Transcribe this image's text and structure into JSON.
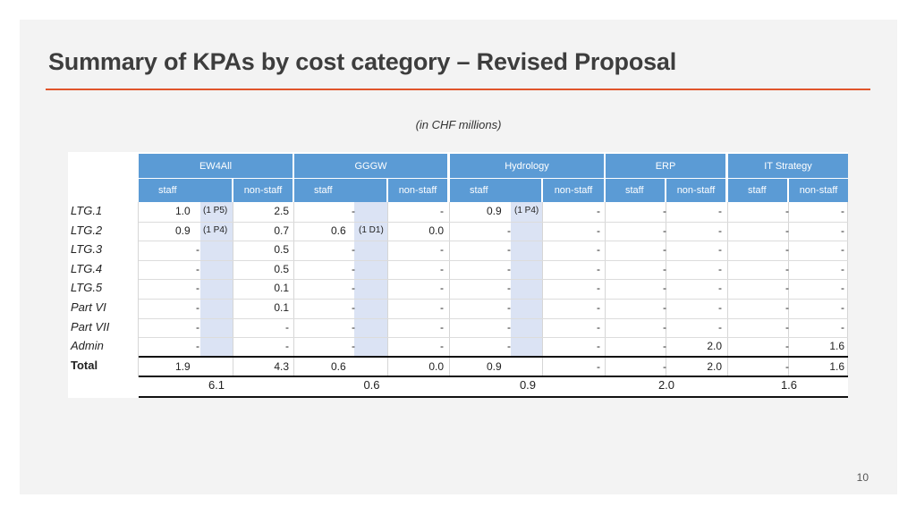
{
  "title": "Summary of KPAs by cost category – Revised Proposal",
  "subtitle": "(in CHF millions)",
  "page_number": "10",
  "table": {
    "groups": [
      {
        "name": "EW4All",
        "staff_label": "staff",
        "nonstaff_label": "non-staff",
        "total": "6.1"
      },
      {
        "name": "GGGW",
        "staff_label": "staff",
        "nonstaff_label": "non-staff",
        "total": "0.6"
      },
      {
        "name": "Hydrology",
        "staff_label": "staff",
        "nonstaff_label": "non-staff",
        "total": "0.9"
      },
      {
        "name": "ERP",
        "staff_label": "staff",
        "nonstaff_label": "non-staff",
        "total": "2.0"
      },
      {
        "name": "IT Strategy",
        "staff_label": "staff",
        "nonstaff_label": "non-staff",
        "total": "1.6"
      }
    ],
    "rows": [
      {
        "label": "LTG.1",
        "cells": [
          "1.0",
          "2.5",
          "-",
          "-",
          "0.9",
          "-",
          "-",
          "-",
          "-",
          "-"
        ],
        "notes": [
          "(1 P5)",
          "",
          "",
          "",
          "(1 P4)",
          "",
          "",
          "",
          "",
          ""
        ]
      },
      {
        "label": "LTG.2",
        "cells": [
          "0.9",
          "0.7",
          "0.6",
          "0.0",
          "-",
          "-",
          "-",
          "-",
          "-",
          "-"
        ],
        "notes": [
          "(1 P4)",
          "",
          "(1 D1)",
          "",
          "",
          "",
          "",
          "",
          "",
          ""
        ]
      },
      {
        "label": "LTG.3",
        "cells": [
          "-",
          "0.5",
          "-",
          "-",
          "-",
          "-",
          "-",
          "-",
          "-",
          "-"
        ]
      },
      {
        "label": "LTG.4",
        "cells": [
          "-",
          "0.5",
          "-",
          "-",
          "-",
          "-",
          "-",
          "-",
          "-",
          "-"
        ]
      },
      {
        "label": "LTG.5",
        "cells": [
          "-",
          "0.1",
          "-",
          "-",
          "-",
          "-",
          "-",
          "-",
          "-",
          "-"
        ]
      },
      {
        "label": "Part VI",
        "cells": [
          "-",
          "0.1",
          "-",
          "-",
          "-",
          "-",
          "-",
          "-",
          "-",
          "-"
        ]
      },
      {
        "label": "Part VII",
        "cells": [
          "-",
          "-",
          "-",
          "-",
          "-",
          "-",
          "-",
          "-",
          "-",
          "-"
        ]
      },
      {
        "label": "Admin",
        "cells": [
          "-",
          "-",
          "-",
          "-",
          "-",
          "-",
          "-",
          "2.0",
          "-",
          "1.6"
        ]
      }
    ],
    "total_row": {
      "label": "Total",
      "cells": [
        "1.9",
        "4.3",
        "0.6",
        "0.0",
        "0.9",
        "-",
        "-",
        "2.0",
        "-",
        "1.6"
      ]
    }
  }
}
